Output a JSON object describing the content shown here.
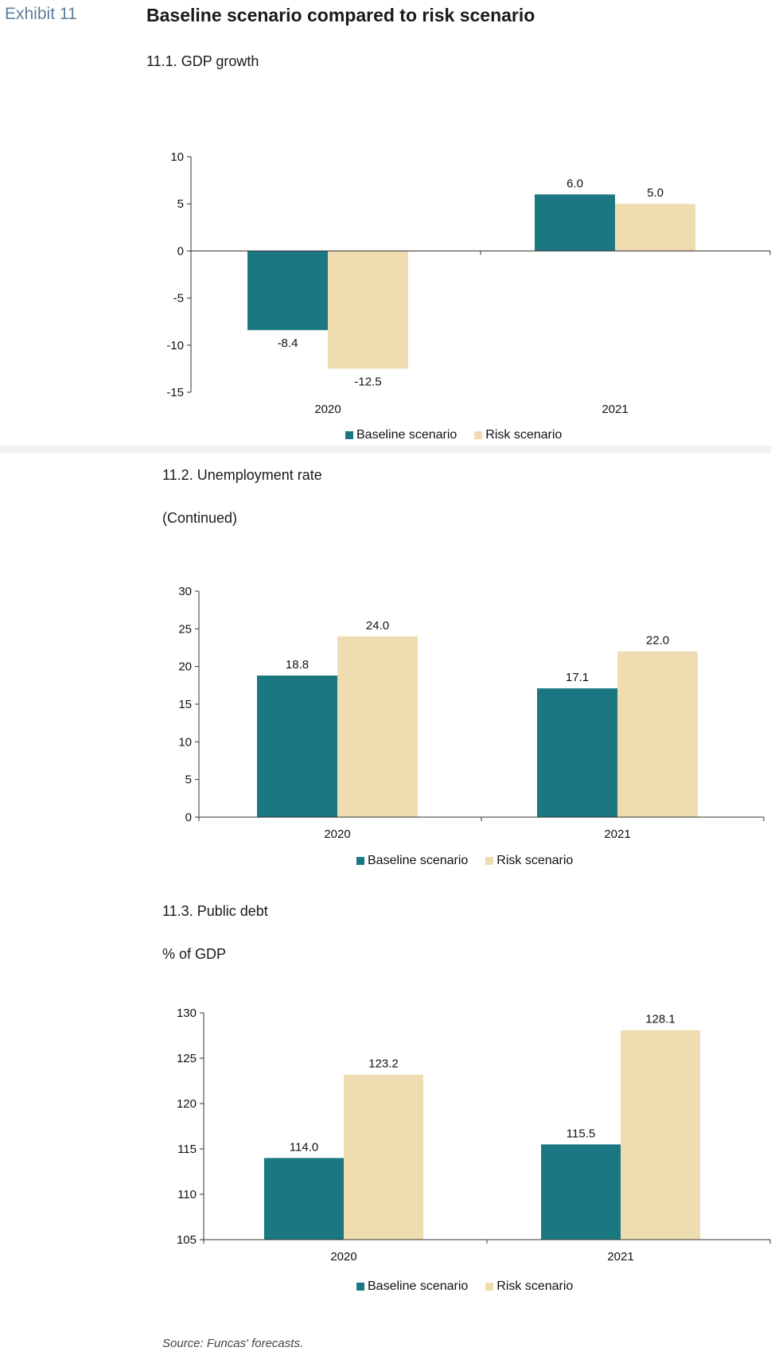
{
  "header": {
    "exhibit": "Exhibit 11",
    "title": "Baseline scenario compared to risk scenario"
  },
  "source": "Source: Funcas' forecasts.",
  "colors": {
    "baseline": "#1b7782",
    "risk": "#efdcb1",
    "axis": "#333333"
  },
  "legend": {
    "baseline": "Baseline scenario",
    "risk": "Risk scenario"
  },
  "charts": [
    {
      "title": "11.1. GDP growth",
      "note": ""
    },
    {
      "title": "11.2. Unemployment rate",
      "note": "(Continued)"
    },
    {
      "title": "11.3. Public debt",
      "note": "% of GDP"
    }
  ],
  "chart_data": [
    {
      "type": "bar",
      "title": "11.1. GDP growth",
      "categories": [
        "2020",
        "2021"
      ],
      "series": [
        {
          "name": "Baseline scenario",
          "values": [
            -8.4,
            6.0
          ],
          "labels": [
            "-8.4",
            "6.0"
          ]
        },
        {
          "name": "Risk scenario",
          "values": [
            -12.5,
            5.0
          ],
          "labels": [
            "-12.5",
            "5.0"
          ]
        }
      ],
      "ylim": [
        -15,
        10
      ],
      "yticks": [
        10,
        5,
        0,
        -5,
        -10,
        -15
      ],
      "grid": false,
      "legend": "bottom"
    },
    {
      "type": "bar",
      "title": "11.2. Unemployment rate",
      "categories": [
        "2020",
        "2021"
      ],
      "series": [
        {
          "name": "Baseline scenario",
          "values": [
            18.8,
            17.1
          ],
          "labels": [
            "18.8",
            "17.1"
          ]
        },
        {
          "name": "Risk scenario",
          "values": [
            24.0,
            22.0
          ],
          "labels": [
            "24.0",
            "22.0"
          ]
        }
      ],
      "ylim": [
        0,
        30
      ],
      "yticks": [
        30,
        25,
        20,
        15,
        10,
        5,
        0
      ],
      "grid": false,
      "legend": "bottom"
    },
    {
      "type": "bar",
      "title": "11.3. Public debt",
      "ylabel": "% of GDP",
      "categories": [
        "2020",
        "2021"
      ],
      "series": [
        {
          "name": "Baseline scenario",
          "values": [
            114.0,
            115.5
          ],
          "labels": [
            "114.0",
            "115.5"
          ]
        },
        {
          "name": "Risk scenario",
          "values": [
            123.2,
            128.1
          ],
          "labels": [
            "123.2",
            "128.1"
          ]
        }
      ],
      "ylim": [
        105,
        130
      ],
      "yticks": [
        130,
        125,
        120,
        115,
        110,
        105
      ],
      "grid": false,
      "legend": "bottom"
    }
  ]
}
